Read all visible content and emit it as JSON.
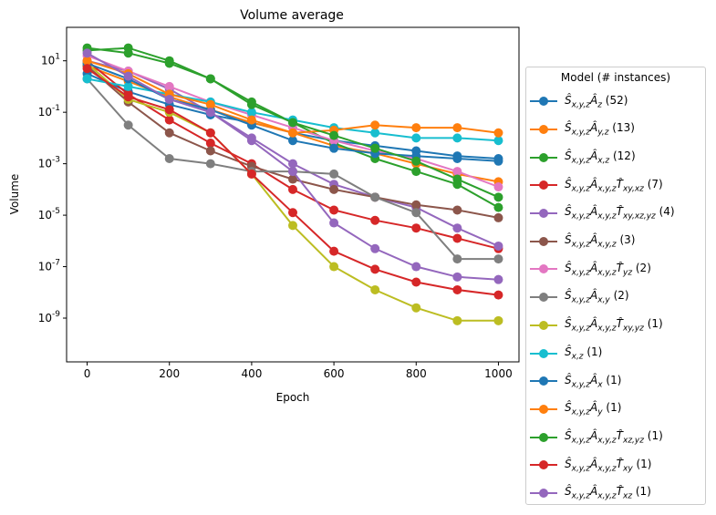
{
  "chart_data": {
    "type": "line",
    "title": "Volume average",
    "xlabel": "Epoch",
    "ylabel": "Volume",
    "xlim": [
      -50,
      1050
    ],
    "ylog": true,
    "ylim_log10": [
      -10.7,
      2.3
    ],
    "xticks": [
      0,
      200,
      400,
      600,
      800,
      1000
    ],
    "xtick_labels": [
      "0",
      "200",
      "400",
      "600",
      "800",
      "1000"
    ],
    "yticks_log10": [
      1,
      -1,
      -3,
      -5,
      -7,
      -9
    ],
    "ytick_labels": [
      "10^1",
      "10^-1",
      "10^-3",
      "10^-5",
      "10^-7",
      "10^-9"
    ],
    "legend_title": "Model (# instances)",
    "legend_position": "outside right",
    "series": [
      {
        "name": "Ŝx,y,zÂz (52)",
        "color": "#1f77b4",
        "x": [
          0,
          100,
          200,
          300,
          400,
          500,
          600,
          700,
          800,
          900,
          1000
        ],
        "log10_y": [
          0.5,
          -0.2,
          -0.7,
          -1.1,
          -1.4,
          -1.8,
          -2.1,
          -2.3,
          -2.5,
          -2.7,
          -2.8
        ]
      },
      {
        "name": "Ŝx,y,zÂy,z (13)",
        "color": "#ff7f0e",
        "x": [
          0,
          100,
          200,
          300,
          400,
          500,
          600,
          700,
          800,
          900,
          1000
        ],
        "log10_y": [
          0.8,
          0.2,
          -0.4,
          -0.9,
          -1.4,
          -1.8,
          -2.3,
          -2.6,
          -3.0,
          -3.4,
          -3.7
        ]
      },
      {
        "name": "Ŝx,y,zÂx,z (12)",
        "color": "#2ca02c",
        "x": [
          0,
          100,
          200,
          300,
          400,
          500,
          600,
          700,
          800,
          900,
          1000
        ],
        "log10_y": [
          1.5,
          1.3,
          0.9,
          0.3,
          -0.6,
          -1.4,
          -2.2,
          -2.8,
          -3.3,
          -3.8,
          -4.7
        ]
      },
      {
        "name": "Ŝx,y,zÂx,y,zT̂xy,xz (7)",
        "color": "#d62728",
        "x": [
          0,
          100,
          200,
          300,
          400,
          500,
          600,
          700,
          800,
          900,
          1000
        ],
        "log10_y": [
          1.0,
          -0.3,
          -1.3,
          -2.2,
          -3.0,
          -4.0,
          -4.8,
          -5.2,
          -5.5,
          -5.9,
          -6.3
        ]
      },
      {
        "name": "Ŝx,y,zÂx,y,zT̂xy,xz,yz (4)",
        "color": "#9467bd",
        "x": [
          0,
          100,
          200,
          300,
          400,
          500,
          600,
          700,
          800,
          900,
          1000
        ],
        "log10_y": [
          1.0,
          0.6,
          -0.1,
          -1.0,
          -2.0,
          -3.0,
          -3.8,
          -4.3,
          -4.7,
          -5.5,
          -6.2
        ]
      },
      {
        "name": "Ŝx,y,zÂx,y,z (3)",
        "color": "#8c564b",
        "x": [
          0,
          100,
          200,
          300,
          400,
          500,
          600,
          700,
          800,
          900,
          1000
        ],
        "log10_y": [
          0.8,
          -0.6,
          -1.8,
          -2.5,
          -3.1,
          -3.6,
          -4.0,
          -4.3,
          -4.6,
          -4.8,
          -5.1
        ]
      },
      {
        "name": "Ŝx,y,zÂx,y,zT̂yz (2)",
        "color": "#e377c2",
        "x": [
          0,
          100,
          200,
          300,
          400,
          500,
          600,
          700,
          800,
          900,
          1000
        ],
        "log10_y": [
          1.2,
          0.6,
          0.0,
          -0.6,
          -1.1,
          -1.6,
          -2.1,
          -2.5,
          -2.8,
          -3.3,
          -3.9
        ]
      },
      {
        "name": "Ŝx,y,zÂx,y (2)",
        "color": "#7f7f7f",
        "x": [
          0,
          100,
          200,
          300,
          400,
          500,
          600,
          700,
          800,
          900,
          1000
        ],
        "log10_y": [
          0.3,
          -1.5,
          -2.8,
          -3.0,
          -3.3,
          -3.3,
          -3.4,
          -4.3,
          -4.9,
          -6.7,
          -6.7
        ]
      },
      {
        "name": "Ŝx,y,zÂx,y,zT̂xy,yz (1)",
        "color": "#bcbd22",
        "x": [
          0,
          100,
          200,
          300,
          400,
          500,
          600,
          700,
          800,
          900,
          1000
        ],
        "log10_y": [
          0.9,
          -0.5,
          -1.0,
          -1.8,
          -3.4,
          -5.4,
          -7.0,
          -7.9,
          -8.6,
          -9.1,
          -9.1
        ]
      },
      {
        "name": "Ŝx,z (1)",
        "color": "#17becf",
        "x": [
          0,
          100,
          200,
          300,
          400,
          500,
          600,
          700,
          800,
          900,
          1000
        ],
        "log10_y": [
          0.3,
          0.0,
          -0.3,
          -0.6,
          -1.0,
          -1.3,
          -1.6,
          -1.8,
          -2.0,
          -2.0,
          -2.1
        ]
      },
      {
        "name": "Ŝx,y,zÂx (1)",
        "color": "#1f77b4",
        "x": [
          0,
          100,
          200,
          300,
          400,
          500,
          600,
          700,
          800,
          900,
          1000
        ],
        "log10_y": [
          0.9,
          0.3,
          -0.5,
          -0.9,
          -1.5,
          -2.1,
          -2.4,
          -2.6,
          -2.7,
          -2.8,
          -2.9
        ]
      },
      {
        "name": "Ŝx,y,zÂy (1)",
        "color": "#ff7f0e",
        "x": [
          0,
          100,
          200,
          300,
          400,
          500,
          600,
          700,
          800,
          900,
          1000
        ],
        "log10_y": [
          1.0,
          0.5,
          -0.3,
          -0.7,
          -1.3,
          -1.8,
          -1.7,
          -1.5,
          -1.6,
          -1.6,
          -1.8
        ]
      },
      {
        "name": "Ŝx,y,zÂx,y,zT̂xz,yz (1)",
        "color": "#2ca02c",
        "x": [
          0,
          100,
          200,
          300,
          400,
          500,
          600,
          700,
          800,
          900,
          1000
        ],
        "log10_y": [
          1.4,
          1.5,
          1.0,
          0.3,
          -0.7,
          -1.4,
          -1.9,
          -2.4,
          -2.9,
          -3.6,
          -4.3
        ]
      },
      {
        "name": "Ŝx,y,zÂx,y,zT̂xy (1)",
        "color": "#d62728",
        "x": [
          0,
          100,
          200,
          300,
          400,
          500,
          600,
          700,
          800,
          900,
          1000
        ],
        "log10_y": [
          0.7,
          -0.4,
          -0.9,
          -1.8,
          -3.4,
          -4.9,
          -6.4,
          -7.1,
          -7.6,
          -7.9,
          -8.1
        ]
      },
      {
        "name": "Ŝx,y,zÂx,y,zT̂xz (1)",
        "color": "#9467bd",
        "x": [
          0,
          100,
          200,
          300,
          400,
          500,
          600,
          700,
          800,
          900,
          1000
        ],
        "log10_y": [
          1.3,
          0.4,
          -0.5,
          -1.0,
          -2.1,
          -3.3,
          -5.3,
          -6.3,
          -7.0,
          -7.4,
          -7.5
        ]
      }
    ]
  }
}
